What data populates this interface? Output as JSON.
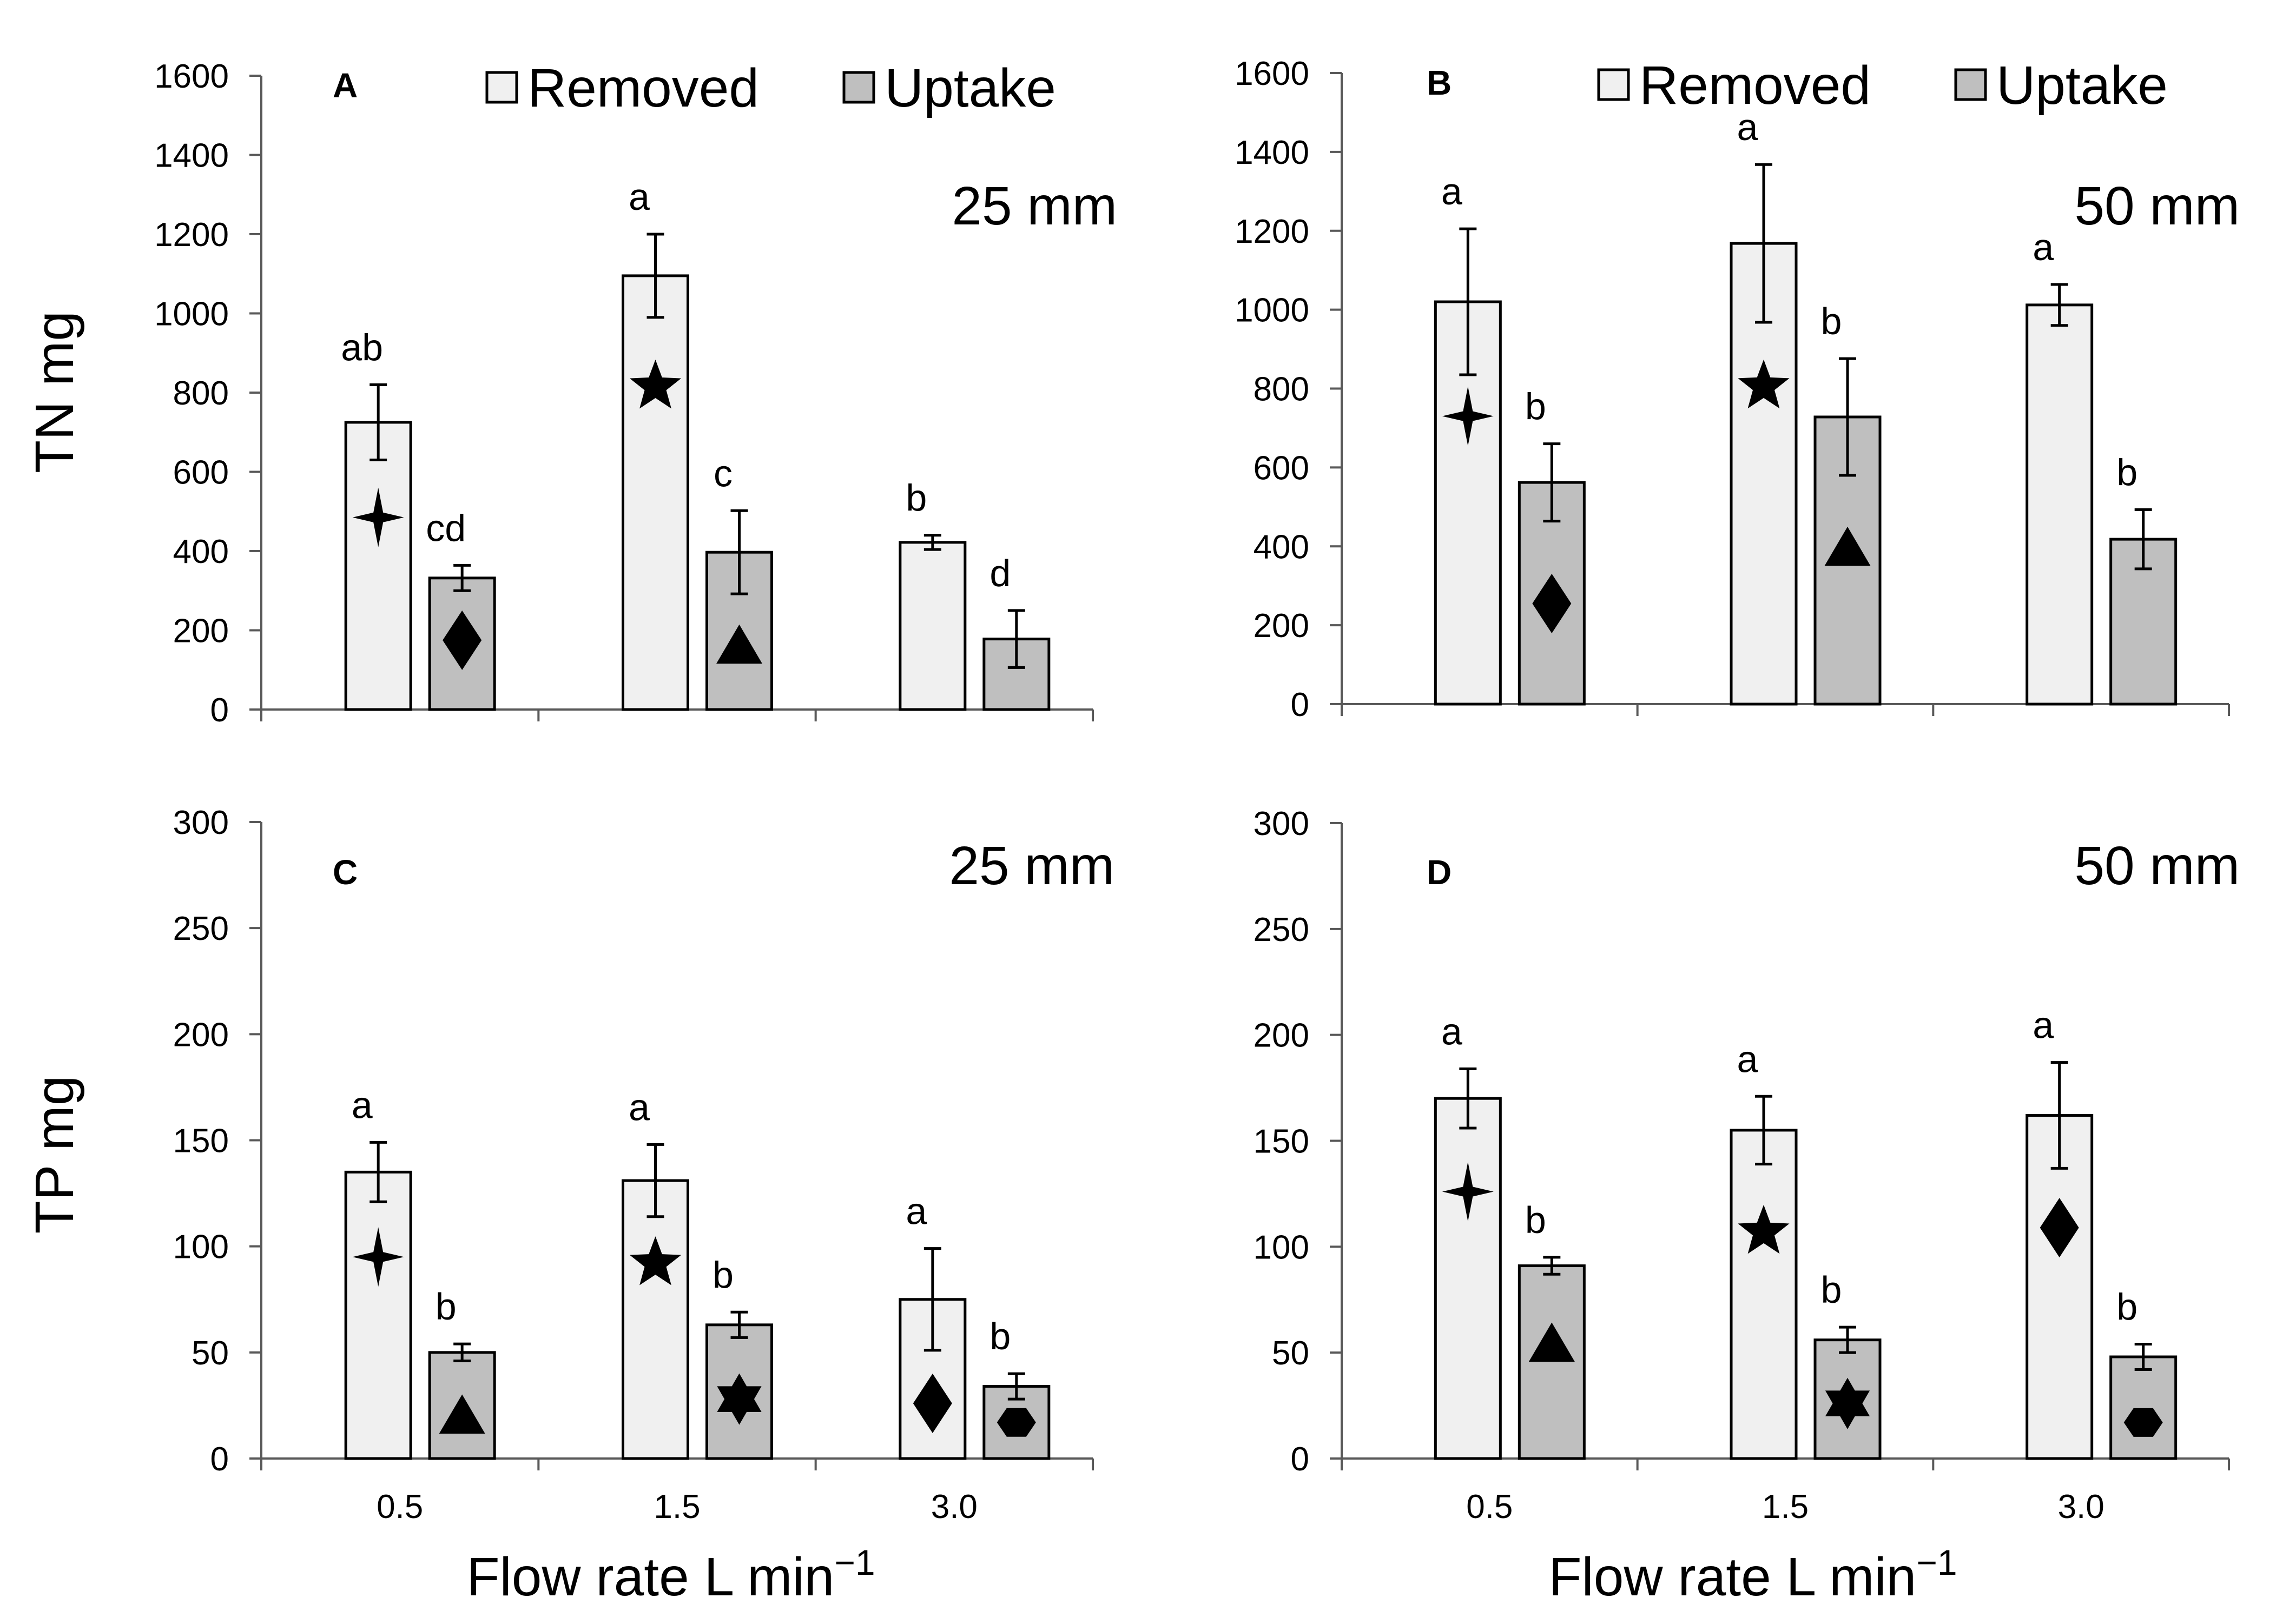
{
  "figure": {
    "x_axis_title": "Flow rate L min",
    "x_axis_title_superscript": "−1",
    "legend": [
      {
        "label": "Removed",
        "color": "#f0f0f0"
      },
      {
        "label": "Uptake",
        "color": "#bfbfbf"
      }
    ]
  },
  "colors": {
    "removed": "#f0f0f0",
    "uptake": "#bfbfbf",
    "stroke": "#000000"
  },
  "chart_data": [
    {
      "id": "A",
      "type": "bar",
      "panel_label": "A",
      "annotation": "25 mm",
      "ylabel": "TN mg",
      "ylim": [
        0,
        1600
      ],
      "yticks": [
        "0",
        "200",
        "400",
        "600",
        "800",
        "1000",
        "1200",
        "1400",
        "1600"
      ],
      "categories": [
        "0.5",
        "1.5",
        "3.0"
      ],
      "show_legend": true,
      "show_xticks": false,
      "series": [
        {
          "name": "Removed",
          "values": [
            725,
            1095,
            422
          ],
          "errors": [
            95,
            105,
            18
          ],
          "letters": [
            "ab",
            "a",
            "b"
          ],
          "symbols": [
            "four-point-star",
            "star",
            ""
          ],
          "symbol_values": [
            485,
            815,
            0
          ]
        },
        {
          "name": "Uptake",
          "values": [
            332,
            397,
            178
          ],
          "errors": [
            32,
            105,
            72
          ],
          "letters": [
            "cd",
            "c",
            "d"
          ],
          "symbols": [
            "diamond",
            "triangle",
            ""
          ],
          "symbol_values": [
            175,
            160,
            0
          ]
        }
      ]
    },
    {
      "id": "B",
      "type": "bar",
      "panel_label": "B",
      "annotation": "50 mm",
      "ylabel": "",
      "ylim": [
        0,
        1600
      ],
      "yticks": [
        "0",
        "200",
        "400",
        "600",
        "800",
        "1000",
        "1200",
        "1400",
        "1600"
      ],
      "categories": [
        "0.5",
        "1.5",
        "3.0"
      ],
      "show_legend": true,
      "show_xticks": false,
      "series": [
        {
          "name": "Removed",
          "values": [
            1020,
            1168,
            1012
          ],
          "errors": [
            185,
            200,
            52
          ],
          "letters": [
            "a",
            "a",
            "a"
          ],
          "symbols": [
            "four-point-star",
            "star",
            ""
          ],
          "symbol_values": [
            730,
            805,
            0
          ]
        },
        {
          "name": "Uptake",
          "values": [
            562,
            728,
            418
          ],
          "errors": [
            98,
            148,
            75
          ],
          "letters": [
            "b",
            "b",
            "b"
          ],
          "symbols": [
            "diamond",
            "triangle",
            ""
          ],
          "symbol_values": [
            255,
            395,
            0
          ]
        }
      ]
    },
    {
      "id": "C",
      "type": "bar",
      "panel_label": "C",
      "annotation": "25 mm",
      "ylabel": "TP mg",
      "ylim": [
        0,
        300
      ],
      "yticks": [
        "0",
        "50",
        "100",
        "150",
        "200",
        "250",
        "300"
      ],
      "categories": [
        "0.5",
        "1.5",
        "3.0"
      ],
      "show_legend": false,
      "show_xticks": true,
      "series": [
        {
          "name": "Removed",
          "values": [
            135,
            131,
            75
          ],
          "errors": [
            14,
            17,
            24
          ],
          "letters": [
            "a",
            "a",
            "a"
          ],
          "symbols": [
            "four-point-star",
            "star",
            "diamond"
          ],
          "symbol_values": [
            95,
            92,
            26
          ]
        },
        {
          "name": "Uptake",
          "values": [
            50,
            63,
            34
          ],
          "errors": [
            4,
            6,
            6
          ],
          "letters": [
            "b",
            "b",
            "b"
          ],
          "symbols": [
            "triangle",
            "hexagram",
            "hexagon"
          ],
          "symbol_values": [
            20,
            28,
            17
          ]
        }
      ]
    },
    {
      "id": "D",
      "type": "bar",
      "panel_label": "D",
      "annotation": "50 mm",
      "ylabel": "",
      "ylim": [
        0,
        300
      ],
      "yticks": [
        "0",
        "50",
        "100",
        "150",
        "200",
        "250",
        "300"
      ],
      "categories": [
        "0.5",
        "1.5",
        "3.0"
      ],
      "show_legend": false,
      "show_xticks": true,
      "series": [
        {
          "name": "Removed",
          "values": [
            170,
            155,
            162
          ],
          "errors": [
            14,
            16,
            25
          ],
          "letters": [
            "a",
            "a",
            "a"
          ],
          "symbols": [
            "four-point-star",
            "star",
            "diamond"
          ],
          "symbol_values": [
            126,
            107,
            109
          ]
        },
        {
          "name": "Uptake",
          "values": [
            91,
            56,
            48
          ],
          "errors": [
            4,
            6,
            6
          ],
          "letters": [
            "b",
            "b",
            "b"
          ],
          "symbols": [
            "triangle",
            "hexagram",
            "hexagon"
          ],
          "symbol_values": [
            54,
            26,
            17
          ]
        }
      ]
    }
  ]
}
